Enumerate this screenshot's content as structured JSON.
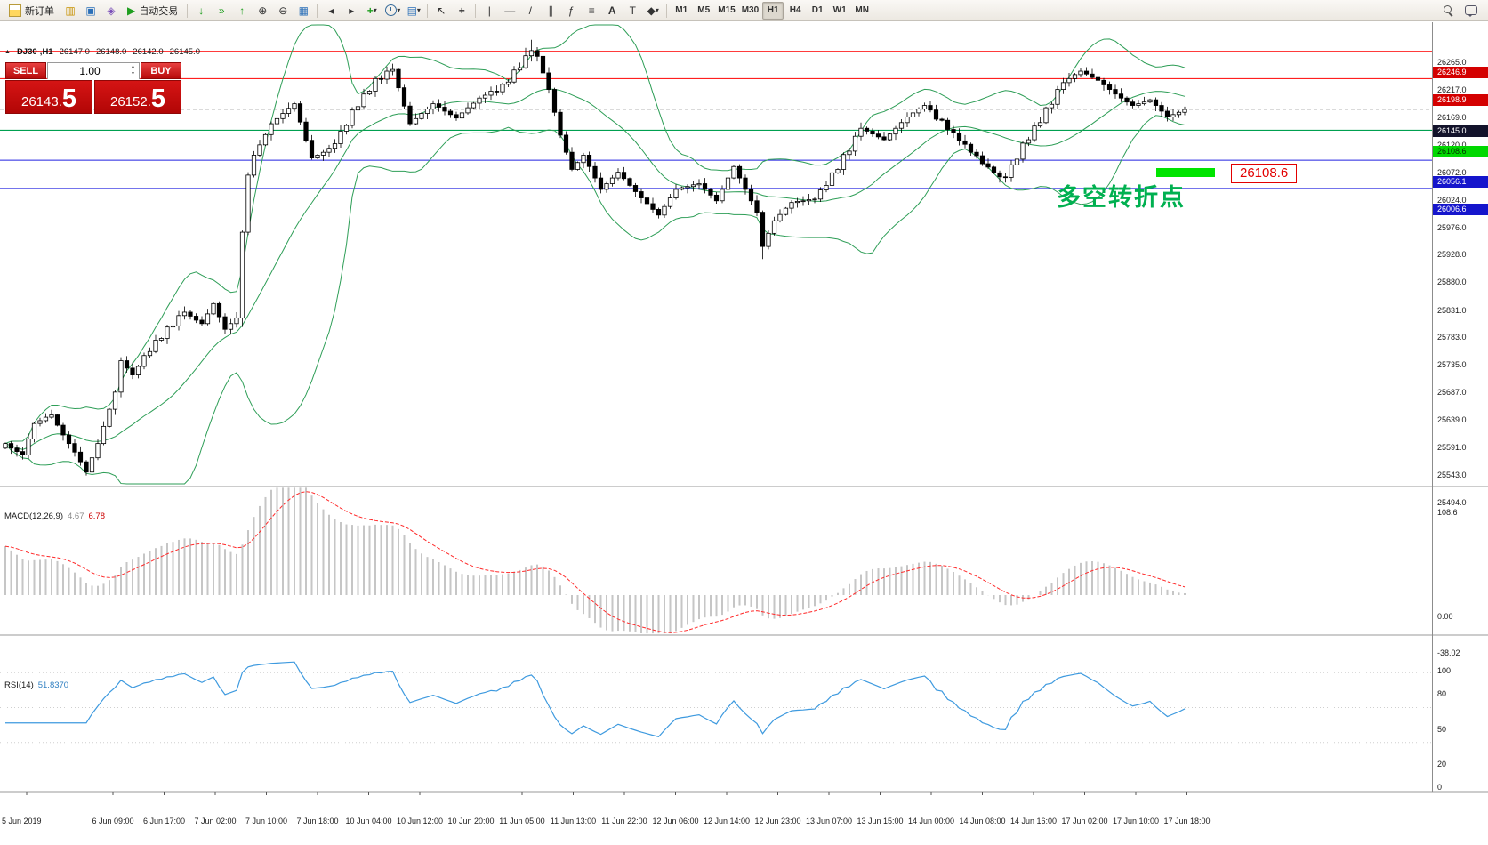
{
  "toolbar": {
    "new_order_label": "新订单",
    "autotrading_label": "自动交易",
    "timeframes": [
      "M1",
      "M5",
      "M15",
      "M30",
      "H1",
      "H4",
      "D1",
      "W1",
      "MN"
    ],
    "active_timeframe": "H1"
  },
  "chart": {
    "one_click": {
      "sell_label": "SELL",
      "buy_label": "BUY",
      "volume": "1.00",
      "sell_price_small": "26143.",
      "sell_price_big": "5",
      "buy_price_small": "26152.",
      "buy_price_big": "5"
    },
    "annotation": {
      "text": "多空转折点",
      "color": "#00b050"
    },
    "callout": {
      "text": "26108.6",
      "color": "#e30000"
    },
    "highlight_color": "#00e400"
  },
  "chart_data": {
    "type": "candlestick",
    "symbol": "DJ30-",
    "period": "H1",
    "symbol_period": "DJ30-,H1",
    "ohlc_display": {
      "open": "26147.0",
      "high": "26148.0",
      "low": "26142.0",
      "close": "26145.0"
    },
    "y_range": [
      25494,
      26265
    ],
    "closes": [
      25560,
      25552,
      25546,
      25540,
      25568,
      25595,
      25600,
      25606,
      25610,
      25592,
      25575,
      25560,
      25545,
      25528,
      25510,
      25535,
      25560,
      25590,
      25620,
      25650,
      25705,
      25692,
      25680,
      25695,
      25714,
      25721,
      25741,
      25744,
      25764,
      25766,
      25784,
      25790,
      25783,
      25776,
      25770,
      25787,
      25805,
      25782,
      25760,
      25770,
      25780,
      25930,
      26030,
      26065,
      26083,
      26101,
      26120,
      26129,
      26138,
      26147,
      26155,
      26123,
      26091,
      26060,
      26065,
      26070,
      26077,
      26085,
      26107,
      26117,
      26144,
      26150,
      26172,
      26177,
      26199,
      26198,
      26212,
      26215,
      26183,
      26151,
      26120,
      26129,
      26138,
      26146,
      26155,
      26149,
      26142,
      26136,
      26130,
      26139,
      26148,
      26156,
      26165,
      26170,
      26177,
      26176,
      26189,
      26193,
      26214,
      26218,
      26239,
      26248,
      26238,
      26209,
      26180,
      26140,
      26100,
      26070,
      26040,
      26052,
      26065,
      26045,
      26025,
      26005,
      26015,
      26025,
      26035,
      26024,
      26012,
      26001,
      25990,
      25980,
      25970,
      25960,
      25975,
      25990,
      26005,
      26008,
      26010,
      26013,
      26015,
      26005,
      25995,
      25985,
      26005,
      26025,
      26045,
      26025,
      26005,
      25985,
      25965,
      25905,
      25928,
      25950,
      25961,
      25972,
      25982,
      25984,
      25985,
      25987,
      25988,
      26004,
      26012,
      26034,
      26040,
      26066,
      26072,
      26098,
      26112,
      26107,
      26102,
      26097,
      26092,
      26102,
      26112,
      26122,
      26132,
      26139,
      26146,
      26152,
      26144,
      26128,
      26126,
      26110,
      26104,
      26090,
      26084,
      26070,
      26064,
      26050,
      26044,
      26034,
      26027,
      26026,
      26048,
      26058,
      26086,
      26092,
      26116,
      26122,
      26148,
      26154,
      26180,
      26192,
      26199,
      26206,
      26212,
      26207,
      26201,
      26196,
      26188,
      26180,
      26172,
      26165,
      26158,
      26152,
      26155,
      26158,
      26162,
      26152,
      26142,
      26132,
      26136,
      26140,
      26145
    ],
    "wick_overrides": {
      "41": {
        "down": 10
      },
      "90": {
        "up": 12
      },
      "91": {
        "up": 15
      },
      "131": {
        "down": 16
      }
    },
    "bollinger": {
      "period": 20,
      "deviation": 2,
      "color": "#2e9e57"
    },
    "macd": {
      "label": "MACD(12,26,9)",
      "current_main": "4.67",
      "current_signal": "6.78",
      "fast": 12,
      "slow": 26,
      "signal": 9,
      "hist_color": "#c6c6c6",
      "signal_color": "#ff2a2a",
      "scale": [
        "108.6",
        "0.00",
        "-38.02"
      ]
    },
    "rsi": {
      "label": "RSI(14)",
      "current": "51.8370",
      "period": 14,
      "color": "#3e9adf",
      "scale": [
        "100",
        "80",
        "50",
        "20",
        "0"
      ],
      "levels": [
        80,
        50,
        20
      ]
    },
    "y_ticks": [
      "26265.0",
      "26217.0",
      "26169.0",
      "26120.0",
      "26072.0",
      "26024.0",
      "25976.0",
      "25928.0",
      "25880.0",
      "25831.0",
      "25783.0",
      "25735.0",
      "25687.0",
      "25639.0",
      "25591.0",
      "25543.0",
      "25494.0"
    ],
    "levels": [
      {
        "value": 26246.9,
        "label": "26246.9",
        "color": "#ff1f1f",
        "style": "solid",
        "badge_bg": "#d40000",
        "badge_fg": "#ffffff"
      },
      {
        "value": 26198.9,
        "label": "26198.9",
        "color": "#ff1f1f",
        "style": "solid",
        "badge_bg": "#d40000",
        "badge_fg": "#ffffff"
      },
      {
        "value": 26108.6,
        "label": "26108.6",
        "color": "#00a050",
        "style": "solid",
        "badge_bg": "#00d800",
        "badge_fg": "#003300"
      },
      {
        "value": 26056.1,
        "label": "26056.1",
        "color": "#2222e0",
        "style": "solid",
        "badge_bg": "#1515cc",
        "badge_fg": "#ffffff"
      },
      {
        "value": 26006.6,
        "label": "26006.6",
        "color": "#2222e0",
        "style": "solid",
        "badge_bg": "#1515cc",
        "badge_fg": "#ffffff"
      }
    ],
    "current_price": {
      "value": 26145.0,
      "label": "26145.0",
      "line_color": "#b5b5b5",
      "badge_bg": "#13132b",
      "badge_fg": "#ffffff"
    },
    "time_labels": [
      "5 Jun 2019",
      "6 Jun 09:00",
      "6 Jun 17:00",
      "7 Jun 02:00",
      "7 Jun 10:00",
      "7 Jun 18:00",
      "10 Jun 04:00",
      "10 Jun 12:00",
      "10 Jun 20:00",
      "11 Jun 05:00",
      "11 Jun 13:00",
      "11 Jun 22:00",
      "12 Jun 06:00",
      "12 Jun 14:00",
      "12 Jun 23:00",
      "13 Jun 07:00",
      "13 Jun 15:00",
      "14 Jun 00:00",
      "14 Jun 08:00",
      "14 Jun 16:00",
      "17 Jun 02:00",
      "17 Jun 10:00",
      "17 Jun 18:00"
    ]
  }
}
